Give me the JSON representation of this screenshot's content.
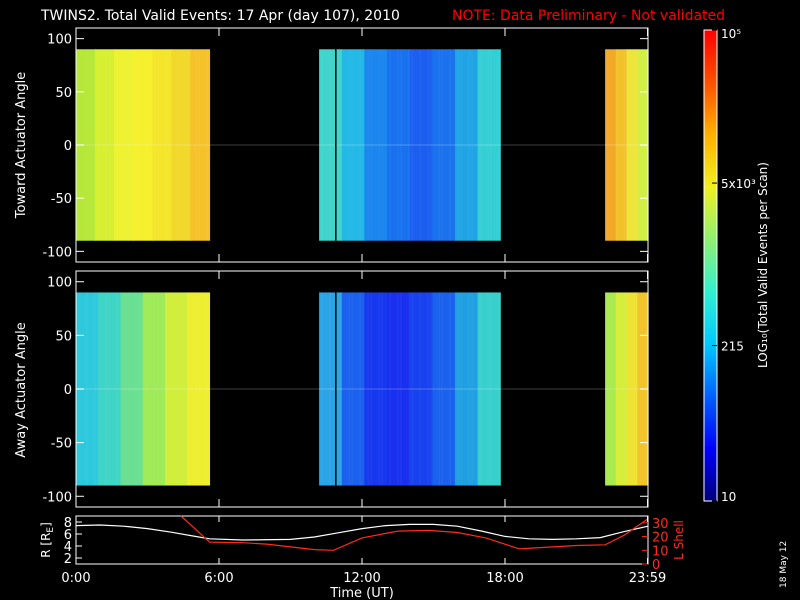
{
  "title": "TWINS2. Total Valid Events: 17 Apr (day 107), 2010",
  "note": "NOTE: Data Preliminary - Not validated",
  "date_stamp": "18 May 12",
  "colors": {
    "background": "#000000",
    "axis": "#ffffff",
    "note": "#ff0000",
    "lshell": "#ff2a1a",
    "radius": "#ffffff"
  },
  "chart_data": [
    {
      "type": "heatmap",
      "name": "toward",
      "ylabel": "Toward Actuator Angle",
      "ylim": [
        -110,
        110
      ],
      "yticks": [
        "100",
        "50",
        "0",
        "-50",
        "-100"
      ],
      "data_angle_range": [
        -90,
        90
      ],
      "xlim_hours": [
        0,
        24
      ],
      "segments": [
        {
          "start": 0,
          "end": 5.6,
          "colors": [
            "#b6e83a",
            "#d6f031",
            "#eef230",
            "#f6f02c",
            "#f4e52a",
            "#f2d82a",
            "#f5c22a"
          ]
        },
        {
          "start": 10.2,
          "end": 17.8,
          "colors": [
            "#3fd4cc",
            "#23b8e6",
            "#1a86ee",
            "#1872f0",
            "#1b5ef0",
            "#1a72ee",
            "#20a4e6",
            "#34cfd4"
          ]
        },
        {
          "start": 22.2,
          "end": 24,
          "colors": [
            "#f3a828",
            "#f3c22a",
            "#eee53a",
            "#d2ef46"
          ]
        }
      ]
    },
    {
      "type": "heatmap",
      "name": "away",
      "ylabel": "Away Actuator Angle",
      "ylim": [
        -110,
        110
      ],
      "yticks": [
        "100",
        "50",
        "0",
        "-50",
        "-100"
      ],
      "data_angle_range": [
        -90,
        90
      ],
      "xlim_hours": [
        0,
        24
      ],
      "segments": [
        {
          "start": 0,
          "end": 5.6,
          "colors": [
            "#2ec8dc",
            "#3ed4c6",
            "#6ae092",
            "#9eea58",
            "#d0ee3a",
            "#eeee30"
          ]
        },
        {
          "start": 10.2,
          "end": 17.8,
          "colors": [
            "#2aa4e6",
            "#1b60ee",
            "#1638ef",
            "#1a30f0",
            "#1842f0",
            "#1a62ee",
            "#20a0e2",
            "#38d0cc"
          ]
        },
        {
          "start": 22.2,
          "end": 24,
          "colors": [
            "#a8ea50",
            "#d4ee3a",
            "#eee232",
            "#f2c42a"
          ]
        }
      ]
    },
    {
      "type": "line",
      "name": "ephemeris",
      "ylabel_left": "R [R",
      "ylabel_left_sub": "E",
      "ylabel_left_end": "]",
      "ylabel_right": "L Shell",
      "left_ticks": [
        "8",
        "6",
        "4",
        "2"
      ],
      "left_ylim": [
        1,
        9
      ],
      "right_ticks": [
        "30",
        "20",
        "10",
        "0"
      ],
      "right_ylim": [
        0,
        35
      ],
      "xlabel": "Time (UT)",
      "xticks": [
        {
          "hour": 0,
          "label": "0:00"
        },
        {
          "hour": 6,
          "label": "6:00"
        },
        {
          "hour": 12,
          "label": "12:00"
        },
        {
          "hour": 18,
          "label": "18:00"
        },
        {
          "hour": 23.98,
          "label": "23:59"
        }
      ],
      "series": [
        {
          "name": "R",
          "axis": "left",
          "x": [
            0,
            1,
            2,
            3,
            4,
            5,
            5.6,
            7,
            9,
            10,
            11,
            12,
            13,
            14,
            15,
            16,
            17,
            18,
            19,
            20,
            21,
            22,
            23,
            24
          ],
          "y": [
            7.4,
            7.5,
            7.3,
            6.9,
            6.3,
            5.6,
            5.2,
            5.0,
            5.1,
            5.5,
            6.2,
            6.9,
            7.4,
            7.6,
            7.6,
            7.3,
            6.5,
            5.6,
            5.2,
            5.1,
            5.2,
            5.4,
            6.4,
            7.3
          ]
        },
        {
          "name": "L Shell",
          "axis": "right",
          "x": [
            4.4,
            5.1,
            5.6,
            7,
            8,
            9,
            10,
            10.8,
            12,
            13.5,
            14.8,
            16,
            17.2,
            18.6,
            20,
            21,
            22.2,
            23,
            24
          ],
          "y": [
            35,
            24,
            16,
            15.5,
            14.5,
            12.5,
            10.5,
            10,
            19,
            24,
            24.5,
            23,
            19,
            11,
            12.5,
            13.5,
            14,
            21,
            33
          ]
        }
      ]
    },
    {
      "type": "colorbar",
      "name": "colorbar",
      "label": "LOG₁₀(Total Valid Events per Scan)",
      "ticks": [
        {
          "label": "10",
          "frac": 0.0
        },
        {
          "label": "215",
          "frac": 0.33
        },
        {
          "label": "5x10³",
          "frac": 0.675
        },
        {
          "label": "10⁵",
          "frac": 1.0
        }
      ],
      "gradient": [
        "#00007a",
        "#0000ff",
        "#0060ff",
        "#00c8ff",
        "#30f0d0",
        "#90f070",
        "#f0f020",
        "#ffb000",
        "#ff5000",
        "#ff0000"
      ]
    }
  ]
}
